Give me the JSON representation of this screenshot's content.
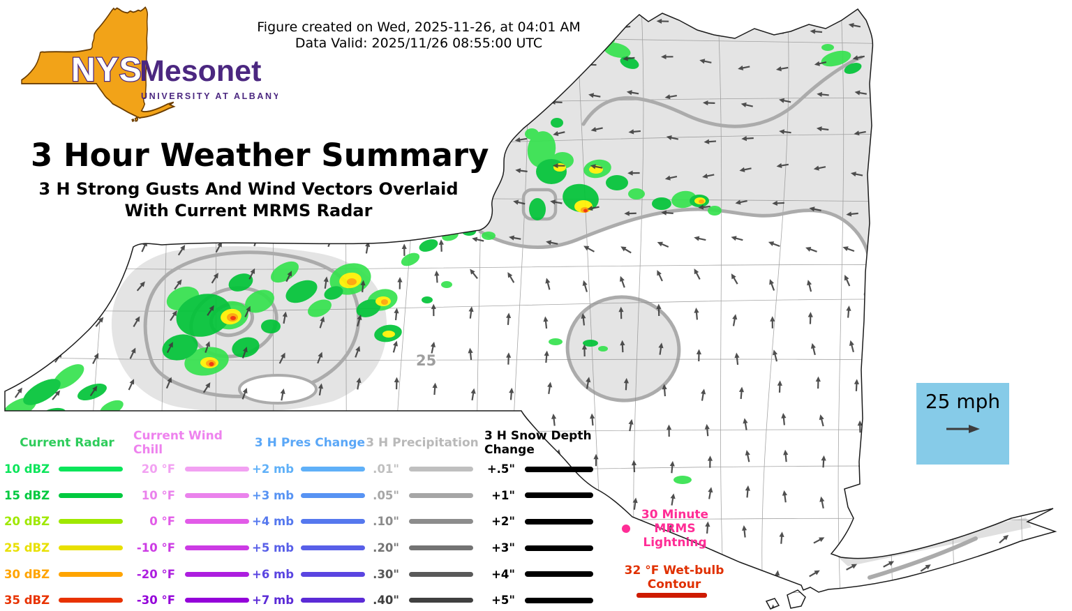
{
  "header": {
    "line1": "Figure created on Wed, 2025-11-26, at 04:01 AM",
    "line2": "Data Valid: 2025/11/26 08:55:00 UTC"
  },
  "logo": {
    "acronym": "NYS",
    "name": "Mesonet",
    "tagline": "UNIVERSITY AT ALBANY",
    "purple": "#4B2780",
    "orange": "#F2A318"
  },
  "titles": {
    "main": "3 Hour Weather Summary",
    "sub1": "3 H Strong Gusts And Wind Vectors Overlaid",
    "sub2": "With Current MRMS Radar"
  },
  "map": {
    "contour_label": "25",
    "wind_scale_label": "25 mph",
    "wind_scale_bg": "#86CBE8"
  },
  "legend": {
    "cols": [
      {
        "title": "Current Radar",
        "title_color": "#2ECC5B",
        "items": [
          {
            "label": "10 dBZ",
            "color": "#0BE55A"
          },
          {
            "label": "15 dBZ",
            "color": "#00C93F"
          },
          {
            "label": "20 dBZ",
            "color": "#9FE800"
          },
          {
            "label": "25 dBZ",
            "color": "#E8E000"
          },
          {
            "label": "30 dBZ",
            "color": "#FFA400"
          },
          {
            "label": "35 dBZ",
            "color": "#E83200"
          }
        ]
      },
      {
        "title": "Current Wind Chill",
        "title_color": "#EE82EE",
        "items": [
          {
            "label": "20 °F",
            "color": "#F2A1F2"
          },
          {
            "label": "10 °F",
            "color": "#EA82EC"
          },
          {
            "label": "0 °F",
            "color": "#E25BE8"
          },
          {
            "label": "-10 °F",
            "color": "#CC3BE4"
          },
          {
            "label": "-20 °F",
            "color": "#AD1EDF"
          },
          {
            "label": "-30 °F",
            "color": "#9402D9"
          }
        ]
      },
      {
        "title": "3 H Pres Change",
        "title_color": "#5AA7F7",
        "items": [
          {
            "label": "+2 mb",
            "color": "#5FB0F8"
          },
          {
            "label": "+3 mb",
            "color": "#5793F3"
          },
          {
            "label": "+4 mb",
            "color": "#5578EE"
          },
          {
            "label": "+5 mb",
            "color": "#585FE8"
          },
          {
            "label": "+6 mb",
            "color": "#5A45E1"
          },
          {
            "label": "+7 mb",
            "color": "#5B2BD6"
          }
        ]
      },
      {
        "title": "3 H Precipitation",
        "title_color": "#B9B9B9",
        "items": [
          {
            "label": ".01\"",
            "color": "#BFBFBF"
          },
          {
            "label": ".05\"",
            "color": "#A6A6A6"
          },
          {
            "label": ".10\"",
            "color": "#8C8C8C"
          },
          {
            "label": ".20\"",
            "color": "#737373"
          },
          {
            "label": ".30\"",
            "color": "#595959"
          },
          {
            "label": ".40\"",
            "color": "#404040"
          }
        ]
      },
      {
        "title": "3 H Snow Depth Change",
        "title_color": "#000000",
        "items": [
          {
            "label": "+.5\"",
            "color": "#000000"
          },
          {
            "label": "+1\"",
            "color": "#000000"
          },
          {
            "label": "+2\"",
            "color": "#000000"
          },
          {
            "label": "+3\"",
            "color": "#000000"
          },
          {
            "label": "+4\"",
            "color": "#000000"
          },
          {
            "label": "+5\"",
            "color": "#000000"
          }
        ]
      }
    ],
    "lightning": {
      "line1": "30 Minute",
      "line2": "MRMS",
      "line3": "Lightning",
      "color": "#FF2D96"
    },
    "wetbulb": {
      "label": "32 °F Wet-bulb Contour",
      "color": "#E03000",
      "line_color": "#CE1B00"
    }
  }
}
